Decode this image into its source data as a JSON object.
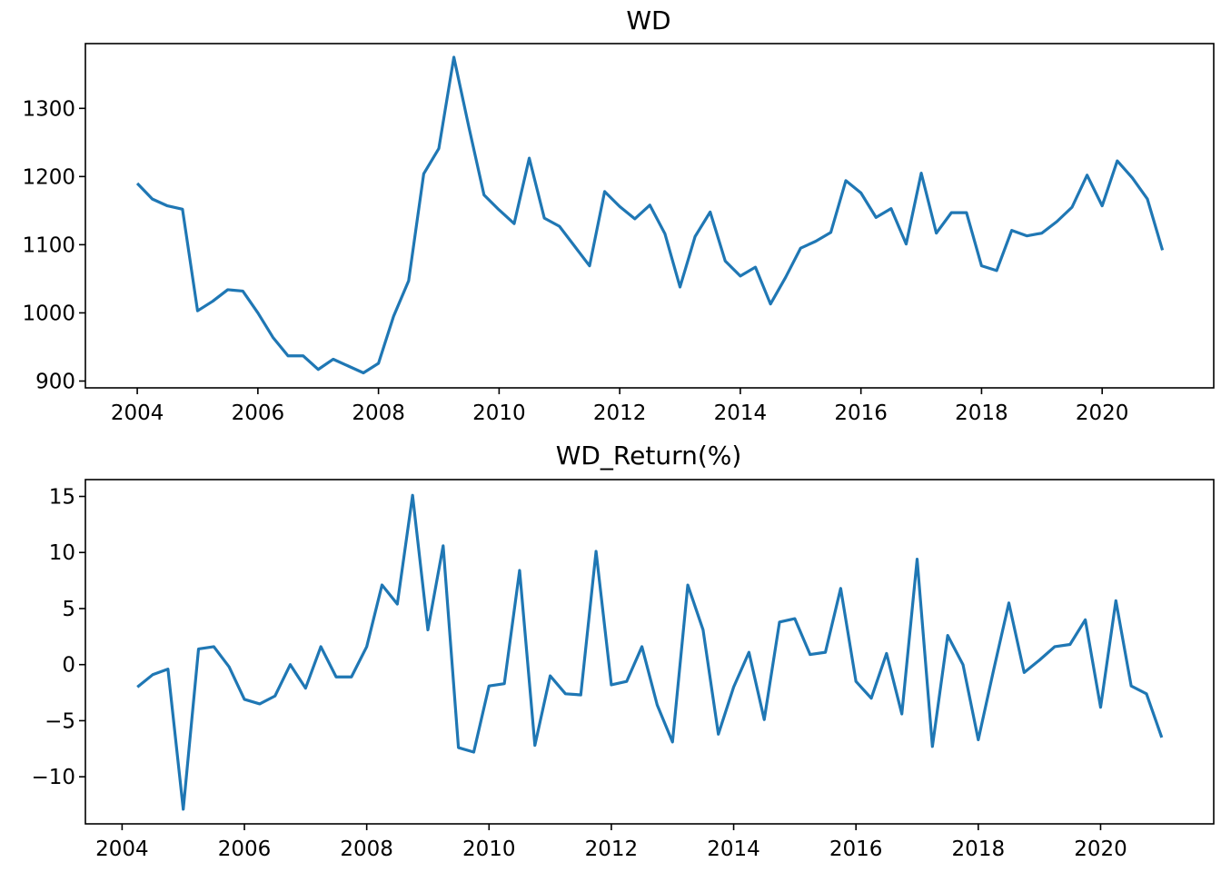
{
  "colors": {
    "line": "#1f77b4"
  },
  "chart_data": [
    {
      "type": "line",
      "title": "WD",
      "xlabel": "",
      "ylabel": "",
      "xlim": [
        2003.14,
        2021.85
      ],
      "ylim": [
        890,
        1395
      ],
      "xticks": [
        2004,
        2006,
        2008,
        2010,
        2012,
        2014,
        2016,
        2018,
        2020
      ],
      "xtick_labels": [
        "2004",
        "2006",
        "2008",
        "2010",
        "2012",
        "2014",
        "2016",
        "2018",
        "2020"
      ],
      "yticks": [
        900,
        1000,
        1100,
        1200,
        1300
      ],
      "ytick_labels": [
        "900",
        "1000",
        "1100",
        "1200",
        "1300"
      ],
      "grid": false,
      "series": [
        {
          "name": "WD",
          "x": [
            2004.0,
            2004.25,
            2004.5,
            2004.75,
            2005.0,
            2005.25,
            2005.5,
            2005.75,
            2006.0,
            2006.25,
            2006.5,
            2006.75,
            2007.0,
            2007.25,
            2007.5,
            2007.75,
            2008.0,
            2008.25,
            2008.5,
            2008.75,
            2009.0,
            2009.25,
            2009.5,
            2009.75,
            2010.0,
            2010.25,
            2010.5,
            2010.75,
            2011.0,
            2011.25,
            2011.5,
            2011.75,
            2012.0,
            2012.25,
            2012.5,
            2012.75,
            2013.0,
            2013.25,
            2013.5,
            2013.75,
            2014.0,
            2014.25,
            2014.5,
            2014.75,
            2015.0,
            2015.25,
            2015.5,
            2015.75,
            2016.0,
            2016.25,
            2016.5,
            2016.75,
            2017.0,
            2017.25,
            2017.5,
            2017.75,
            2018.0,
            2018.25,
            2018.5,
            2018.75,
            2019.0,
            2019.25,
            2019.5,
            2019.75,
            2020.0,
            2020.25,
            2020.5,
            2020.75,
            2021.0
          ],
          "values": [
            1190,
            1167,
            1157,
            1152,
            1003,
            1017,
            1034,
            1032,
            1000,
            964,
            937,
            937,
            917,
            932,
            922,
            912,
            926,
            995,
            1047,
            1204,
            1241,
            1375,
            1272,
            1173,
            1151,
            1131,
            1227,
            1139,
            1127,
            1098,
            1069,
            1178,
            1156,
            1138,
            1158,
            1116,
            1038,
            1112,
            1148,
            1076,
            1054,
            1067,
            1013,
            1052,
            1095,
            1105,
            1118,
            1194,
            1176,
            1140,
            1153,
            1101,
            1205,
            1117,
            1147,
            1147,
            1069,
            1062,
            1121,
            1113,
            1117,
            1134,
            1155,
            1202,
            1157,
            1223,
            1198,
            1167,
            1092
          ]
        }
      ]
    },
    {
      "type": "line",
      "title": "WD_Return(%)",
      "xlabel": "",
      "ylabel": "",
      "xlim": [
        2003.4,
        2021.85
      ],
      "ylim": [
        -14.2,
        16.5
      ],
      "xticks": [
        2004,
        2006,
        2008,
        2010,
        2012,
        2014,
        2016,
        2018,
        2020
      ],
      "xtick_labels": [
        "2004",
        "2006",
        "2008",
        "2010",
        "2012",
        "2014",
        "2016",
        "2018",
        "2020"
      ],
      "yticks": [
        -10,
        -5,
        0,
        5,
        10,
        15
      ],
      "ytick_labels": [
        "−10",
        "−5",
        "0",
        "5",
        "10",
        "15"
      ],
      "grid": false,
      "series": [
        {
          "name": "WD_Return(%)",
          "x": [
            2004.25,
            2004.5,
            2004.75,
            2005.0,
            2005.25,
            2005.5,
            2005.75,
            2006.0,
            2006.25,
            2006.5,
            2006.75,
            2007.0,
            2007.25,
            2007.5,
            2007.75,
            2008.0,
            2008.25,
            2008.5,
            2008.75,
            2009.0,
            2009.25,
            2009.5,
            2009.75,
            2010.0,
            2010.25,
            2010.5,
            2010.75,
            2011.0,
            2011.25,
            2011.5,
            2011.75,
            2012.0,
            2012.25,
            2012.5,
            2012.75,
            2013.0,
            2013.25,
            2013.5,
            2013.75,
            2014.0,
            2014.25,
            2014.5,
            2014.75,
            2015.0,
            2015.25,
            2015.5,
            2015.75,
            2016.0,
            2016.25,
            2016.5,
            2016.75,
            2017.0,
            2017.25,
            2017.5,
            2017.75,
            2018.0,
            2018.25,
            2018.5,
            2018.75,
            2019.0,
            2019.25,
            2019.5,
            2019.75,
            2020.0,
            2020.25,
            2020.5,
            2020.75,
            2021.0
          ],
          "values": [
            -2.0,
            -0.9,
            -0.4,
            -12.9,
            1.4,
            1.6,
            -0.2,
            -3.1,
            -3.5,
            -2.8,
            0.0,
            -2.1,
            1.6,
            -1.1,
            -1.1,
            1.6,
            7.1,
            5.4,
            15.1,
            3.1,
            10.6,
            -7.4,
            -7.8,
            -1.9,
            -1.7,
            8.4,
            -7.2,
            -1.0,
            -2.6,
            -2.7,
            10.1,
            -1.8,
            -1.5,
            1.6,
            -3.6,
            -6.9,
            7.1,
            3.1,
            -6.2,
            -2.0,
            1.1,
            -4.9,
            3.8,
            4.1,
            0.9,
            1.1,
            6.8,
            -1.5,
            -3.0,
            1.0,
            -4.4,
            9.4,
            -7.3,
            2.6,
            0.0,
            -6.7,
            -0.5,
            5.5,
            -0.7,
            0.4,
            1.6,
            1.8,
            4.0,
            -3.8,
            5.7,
            -1.9,
            -2.6,
            -6.5
          ]
        }
      ]
    }
  ]
}
